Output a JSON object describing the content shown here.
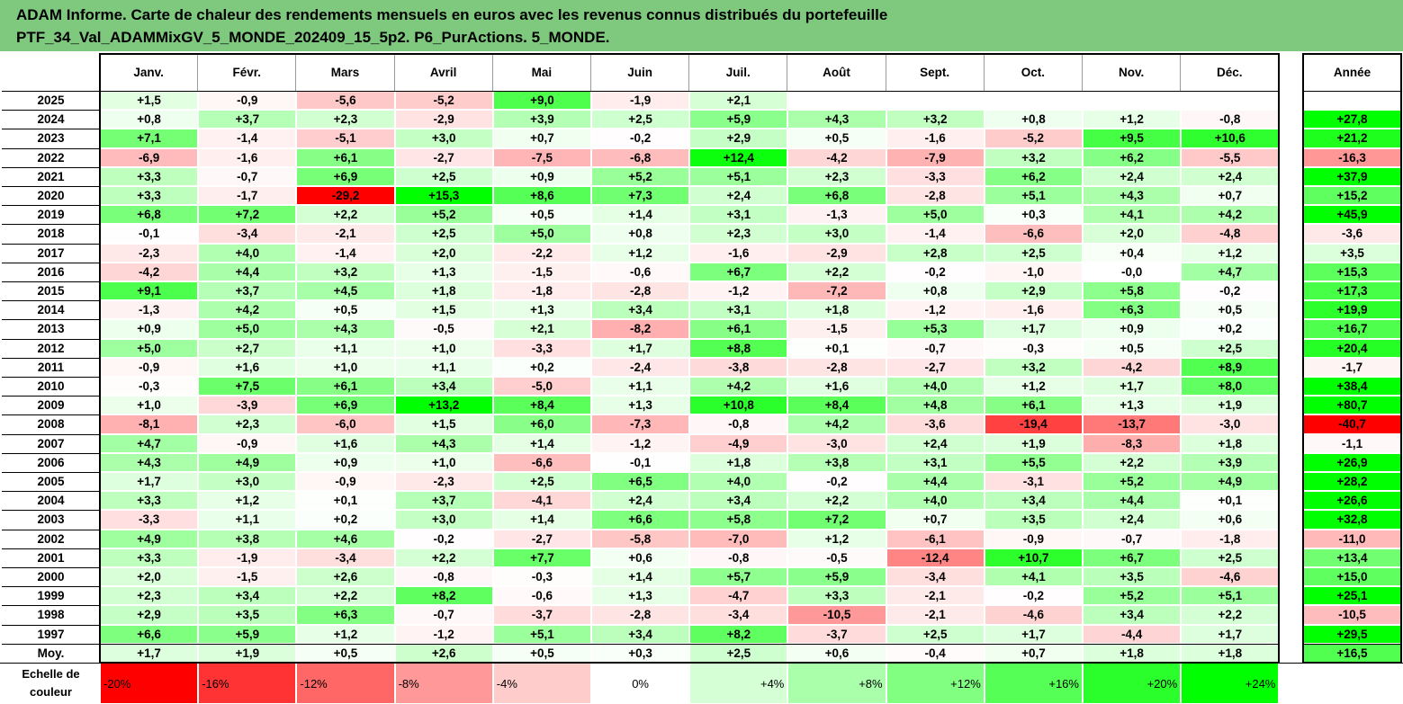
{
  "title": {
    "line1": "ADAM Informe. Carte de chaleur des rendements mensuels en euros avec les revenus connus distribués du portefeuille",
    "line2": "PTF_34_Val_ADAMMixGV_5_MONDE_202409_15_5p2. P6_PurActions. 5_MONDE."
  },
  "chart_data": {
    "type": "heatmap",
    "columns": [
      "Janv.",
      "Févr.",
      "Mars",
      "Avril",
      "Mai",
      "Juin",
      "Juil.",
      "Août",
      "Sept.",
      "Oct.",
      "Nov.",
      "Déc."
    ],
    "year_column": "Année",
    "rows": [
      {
        "label": "2025",
        "values": [
          "+1,5",
          "-0,9",
          "-5,6",
          "-5,2",
          "+9,0",
          "-1,9",
          "+2,1",
          "",
          "",
          "",
          "",
          ""
        ],
        "annual": ""
      },
      {
        "label": "2024",
        "values": [
          "+0,8",
          "+3,7",
          "+2,3",
          "-2,9",
          "+3,9",
          "+2,5",
          "+5,9",
          "+4,3",
          "+3,2",
          "+0,8",
          "+1,2",
          "-0,8"
        ],
        "annual": "+27,8"
      },
      {
        "label": "2023",
        "values": [
          "+7,1",
          "-1,4",
          "-5,1",
          "+3,0",
          "+0,7",
          "-0,2",
          "+2,9",
          "+0,5",
          "-1,6",
          "-5,2",
          "+9,5",
          "+10,6"
        ],
        "annual": "+21,2"
      },
      {
        "label": "2022",
        "values": [
          "-6,9",
          "-1,6",
          "+6,1",
          "-2,7",
          "-7,5",
          "-6,8",
          "+12,4",
          "-4,2",
          "-7,9",
          "+3,2",
          "+6,2",
          "-5,5"
        ],
        "annual": "-16,3"
      },
      {
        "label": "2021",
        "values": [
          "+3,3",
          "-0,7",
          "+6,9",
          "+2,5",
          "+0,9",
          "+5,2",
          "+5,1",
          "+2,3",
          "-3,3",
          "+6,2",
          "+2,4",
          "+2,4"
        ],
        "annual": "+37,9"
      },
      {
        "label": "2020",
        "values": [
          "+3,3",
          "-1,7",
          "-29,2",
          "+15,3",
          "+8,6",
          "+7,3",
          "+2,4",
          "+6,8",
          "-2,8",
          "+5,1",
          "+4,3",
          "+0,7"
        ],
        "annual": "+15,2"
      },
      {
        "label": "2019",
        "values": [
          "+6,8",
          "+7,2",
          "+2,2",
          "+5,2",
          "+0,5",
          "+1,4",
          "+3,1",
          "-1,3",
          "+5,0",
          "+0,3",
          "+4,1",
          "+4,2"
        ],
        "annual": "+45,9"
      },
      {
        "label": "2018",
        "values": [
          "-0,1",
          "-3,4",
          "-2,1",
          "+2,5",
          "+5,0",
          "+0,8",
          "+2,3",
          "+3,0",
          "-1,4",
          "-6,6",
          "+2,0",
          "-4,8"
        ],
        "annual": "-3,6"
      },
      {
        "label": "2017",
        "values": [
          "-2,3",
          "+4,0",
          "-1,4",
          "+2,0",
          "-2,2",
          "+1,2",
          "-1,6",
          "-2,9",
          "+2,8",
          "+2,5",
          "+0,4",
          "+1,2"
        ],
        "annual": "+3,5"
      },
      {
        "label": "2016",
        "values": [
          "-4,2",
          "+4,4",
          "+3,2",
          "+1,3",
          "-1,5",
          "-0,6",
          "+6,7",
          "+2,2",
          "-0,2",
          "-1,0",
          "-0,0",
          "+4,7"
        ],
        "annual": "+15,3"
      },
      {
        "label": "2015",
        "values": [
          "+9,1",
          "+3,7",
          "+4,5",
          "+1,8",
          "-1,8",
          "-2,8",
          "-1,2",
          "-7,2",
          "+0,8",
          "+2,9",
          "+5,8",
          "-0,2"
        ],
        "annual": "+17,3"
      },
      {
        "label": "2014",
        "values": [
          "-1,3",
          "+4,2",
          "+0,5",
          "+1,5",
          "+1,3",
          "+3,4",
          "+3,1",
          "+1,8",
          "-1,2",
          "-1,6",
          "+6,3",
          "+0,5"
        ],
        "annual": "+19,9"
      },
      {
        "label": "2013",
        "values": [
          "+0,9",
          "+5,0",
          "+4,3",
          "-0,5",
          "+2,1",
          "-8,2",
          "+6,1",
          "-1,5",
          "+5,3",
          "+1,7",
          "+0,9",
          "+0,2"
        ],
        "annual": "+16,7"
      },
      {
        "label": "2012",
        "values": [
          "+5,0",
          "+2,7",
          "+1,1",
          "+1,0",
          "-3,3",
          "+1,7",
          "+8,8",
          "+0,1",
          "-0,7",
          "-0,3",
          "+0,5",
          "+2,5"
        ],
        "annual": "+20,4"
      },
      {
        "label": "2011",
        "values": [
          "-0,9",
          "+1,6",
          "+1,0",
          "+1,1",
          "+0,2",
          "-2,4",
          "-3,8",
          "-2,8",
          "-2,7",
          "+3,2",
          "-4,2",
          "+8,9"
        ],
        "annual": "-1,7"
      },
      {
        "label": "2010",
        "values": [
          "-0,3",
          "+7,5",
          "+6,1",
          "+3,4",
          "-5,0",
          "+1,1",
          "+4,2",
          "+1,6",
          "+4,0",
          "+1,2",
          "+1,7",
          "+8,0"
        ],
        "annual": "+38,4"
      },
      {
        "label": "2009",
        "values": [
          "+1,0",
          "-3,9",
          "+6,9",
          "+13,2",
          "+8,4",
          "+1,3",
          "+10,8",
          "+8,4",
          "+4,8",
          "+6,1",
          "+1,3",
          "+1,9"
        ],
        "annual": "+80,7"
      },
      {
        "label": "2008",
        "values": [
          "-8,1",
          "+2,3",
          "-6,0",
          "+1,5",
          "+6,0",
          "-7,3",
          "-0,8",
          "+4,2",
          "-3,6",
          "-19,4",
          "-13,7",
          "-3,0"
        ],
        "annual": "-40,7"
      },
      {
        "label": "2007",
        "values": [
          "+4,7",
          "-0,9",
          "+1,6",
          "+4,3",
          "+1,4",
          "-1,2",
          "-4,9",
          "-3,0",
          "+2,4",
          "+1,9",
          "-8,3",
          "+1,8"
        ],
        "annual": "-1,1"
      },
      {
        "label": "2006",
        "values": [
          "+4,3",
          "+4,9",
          "+0,9",
          "+1,0",
          "-6,6",
          "-0,1",
          "+1,8",
          "+3,8",
          "+3,1",
          "+5,5",
          "+2,2",
          "+3,9"
        ],
        "annual": "+26,9"
      },
      {
        "label": "2005",
        "values": [
          "+1,7",
          "+3,0",
          "-0,9",
          "-2,3",
          "+2,5",
          "+6,5",
          "+4,0",
          "-0,2",
          "+4,4",
          "-3,1",
          "+5,2",
          "+4,9"
        ],
        "annual": "+28,2"
      },
      {
        "label": "2004",
        "values": [
          "+3,3",
          "+1,2",
          "+0,1",
          "+3,7",
          "-4,1",
          "+2,4",
          "+3,4",
          "+2,2",
          "+4,0",
          "+3,4",
          "+4,4",
          "+0,1"
        ],
        "annual": "+26,6"
      },
      {
        "label": "2003",
        "values": [
          "-3,3",
          "+1,1",
          "+0,2",
          "+3,0",
          "+1,4",
          "+6,6",
          "+5,8",
          "+7,2",
          "+0,7",
          "+3,5",
          "+2,4",
          "+0,6"
        ],
        "annual": "+32,8"
      },
      {
        "label": "2002",
        "values": [
          "+4,9",
          "+3,8",
          "+4,6",
          "-0,2",
          "-2,7",
          "-5,8",
          "-7,0",
          "+1,2",
          "-6,1",
          "-0,9",
          "-0,7",
          "-1,8"
        ],
        "annual": "-11,0"
      },
      {
        "label": "2001",
        "values": [
          "+3,3",
          "-1,9",
          "-3,4",
          "+2,2",
          "+7,7",
          "+0,6",
          "-0,8",
          "-0,5",
          "-12,4",
          "+10,7",
          "+6,7",
          "+2,5"
        ],
        "annual": "+13,4"
      },
      {
        "label": "2000",
        "values": [
          "+2,0",
          "-1,5",
          "+2,6",
          "-0,8",
          "-0,3",
          "+1,4",
          "+5,7",
          "+5,9",
          "-3,4",
          "+4,1",
          "+3,5",
          "-4,6"
        ],
        "annual": "+15,0"
      },
      {
        "label": "1999",
        "values": [
          "+2,3",
          "+3,4",
          "+2,2",
          "+8,2",
          "-0,6",
          "+1,3",
          "-4,7",
          "+3,3",
          "-2,1",
          "-0,2",
          "+5,2",
          "+5,1"
        ],
        "annual": "+25,1"
      },
      {
        "label": "1998",
        "values": [
          "+2,9",
          "+3,5",
          "+6,3",
          "-0,7",
          "-3,7",
          "-2,8",
          "-3,4",
          "-10,5",
          "-2,1",
          "-4,6",
          "+3,4",
          "+2,2"
        ],
        "annual": "-10,5"
      },
      {
        "label": "1997",
        "values": [
          "+6,6",
          "+5,9",
          "+1,2",
          "-1,2",
          "+5,1",
          "+3,4",
          "+8,2",
          "-3,7",
          "+2,5",
          "+1,7",
          "-4,4",
          "+1,7"
        ],
        "annual": "+29,5"
      }
    ],
    "average_row": {
      "label": "Moy.",
      "values": [
        "+1,7",
        "+1,9",
        "+0,5",
        "+2,6",
        "+0,5",
        "+0,3",
        "+2,5",
        "+0,6",
        "-0,4",
        "+0,7",
        "+1,8",
        "+1,8"
      ],
      "annual": "+16,5"
    },
    "scale": {
      "label_line1": "Echelle de",
      "label_line2": "couleur",
      "steps": [
        {
          "label": "-20%",
          "value": -20
        },
        {
          "label": "-16%",
          "value": -16
        },
        {
          "label": "-12%",
          "value": -12
        },
        {
          "label": "-8%",
          "value": -8
        },
        {
          "label": "-4%",
          "value": -4
        },
        {
          "label": "0%",
          "value": 0
        },
        {
          "label": "+4%",
          "value": 4
        },
        {
          "label": "+8%",
          "value": 8
        },
        {
          "label": "+12%",
          "value": 12
        },
        {
          "label": "+16%",
          "value": 16
        },
        {
          "label": "+20%",
          "value": 20
        },
        {
          "label": "+24%",
          "value": 24
        }
      ]
    },
    "colors": {
      "negative_max": "#ff0000",
      "neutral": "#ffffff",
      "positive_max": "#00ff00",
      "title_band": "#7fc97f"
    }
  }
}
